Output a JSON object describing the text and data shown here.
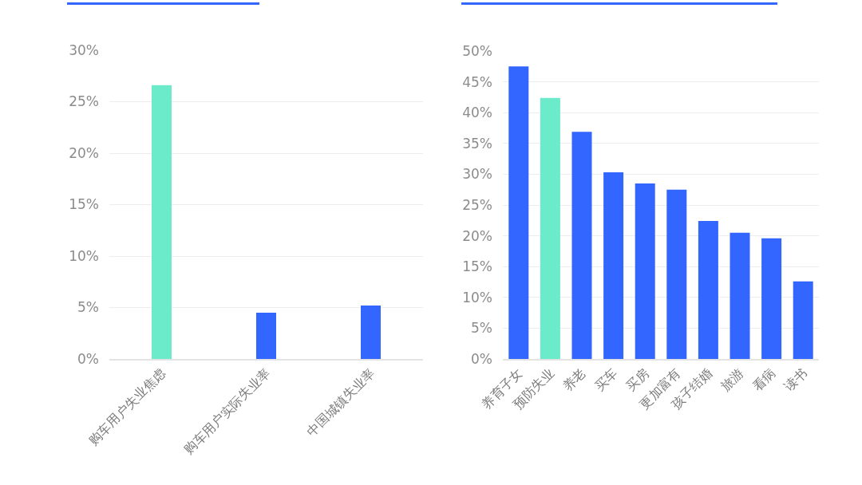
{
  "chart_data": [
    {
      "type": "bar",
      "categories": [
        "购车用户失业焦虑",
        "购车用户实际失业率",
        "中国城镇失业率"
      ],
      "values": [
        26.6,
        4.5,
        5.2
      ],
      "colors": [
        "#6cebca",
        "#3366ff",
        "#3366ff"
      ],
      "ylim": [
        0,
        30
      ],
      "yticks": [
        {
          "value": 0,
          "label": "0%"
        },
        {
          "value": 5,
          "label": "5%"
        },
        {
          "value": 10,
          "label": "10%"
        },
        {
          "value": 15,
          "label": "15%"
        },
        {
          "value": 20,
          "label": "20%"
        },
        {
          "value": 25,
          "label": "25%"
        },
        {
          "value": 30,
          "label": "30%"
        }
      ],
      "grid": "y"
    },
    {
      "type": "bar",
      "categories": [
        "养育子女",
        "预防失业",
        "养老",
        "买车",
        "买房",
        "更加富有",
        "孩子结婚",
        "旅游",
        "看病",
        "读书"
      ],
      "values": [
        47.5,
        42.4,
        36.9,
        30.3,
        28.5,
        27.5,
        22.4,
        20.5,
        19.6,
        12.6
      ],
      "colors": [
        "#3366ff",
        "#6cebca",
        "#3366ff",
        "#3366ff",
        "#3366ff",
        "#3366ff",
        "#3366ff",
        "#3366ff",
        "#3366ff",
        "#3366ff"
      ],
      "ylim": [
        0,
        50
      ],
      "yticks": [
        {
          "value": 0,
          "label": "0%"
        },
        {
          "value": 5,
          "label": "5%"
        },
        {
          "value": 10,
          "label": "10%"
        },
        {
          "value": 15,
          "label": "15%"
        },
        {
          "value": 20,
          "label": "20%"
        },
        {
          "value": 25,
          "label": "25%"
        },
        {
          "value": 30,
          "label": "30%"
        },
        {
          "value": 35,
          "label": "35%"
        },
        {
          "value": 40,
          "label": "40%"
        },
        {
          "value": 45,
          "label": "45%"
        },
        {
          "value": 50,
          "label": "50%"
        }
      ],
      "grid": "y"
    }
  ]
}
